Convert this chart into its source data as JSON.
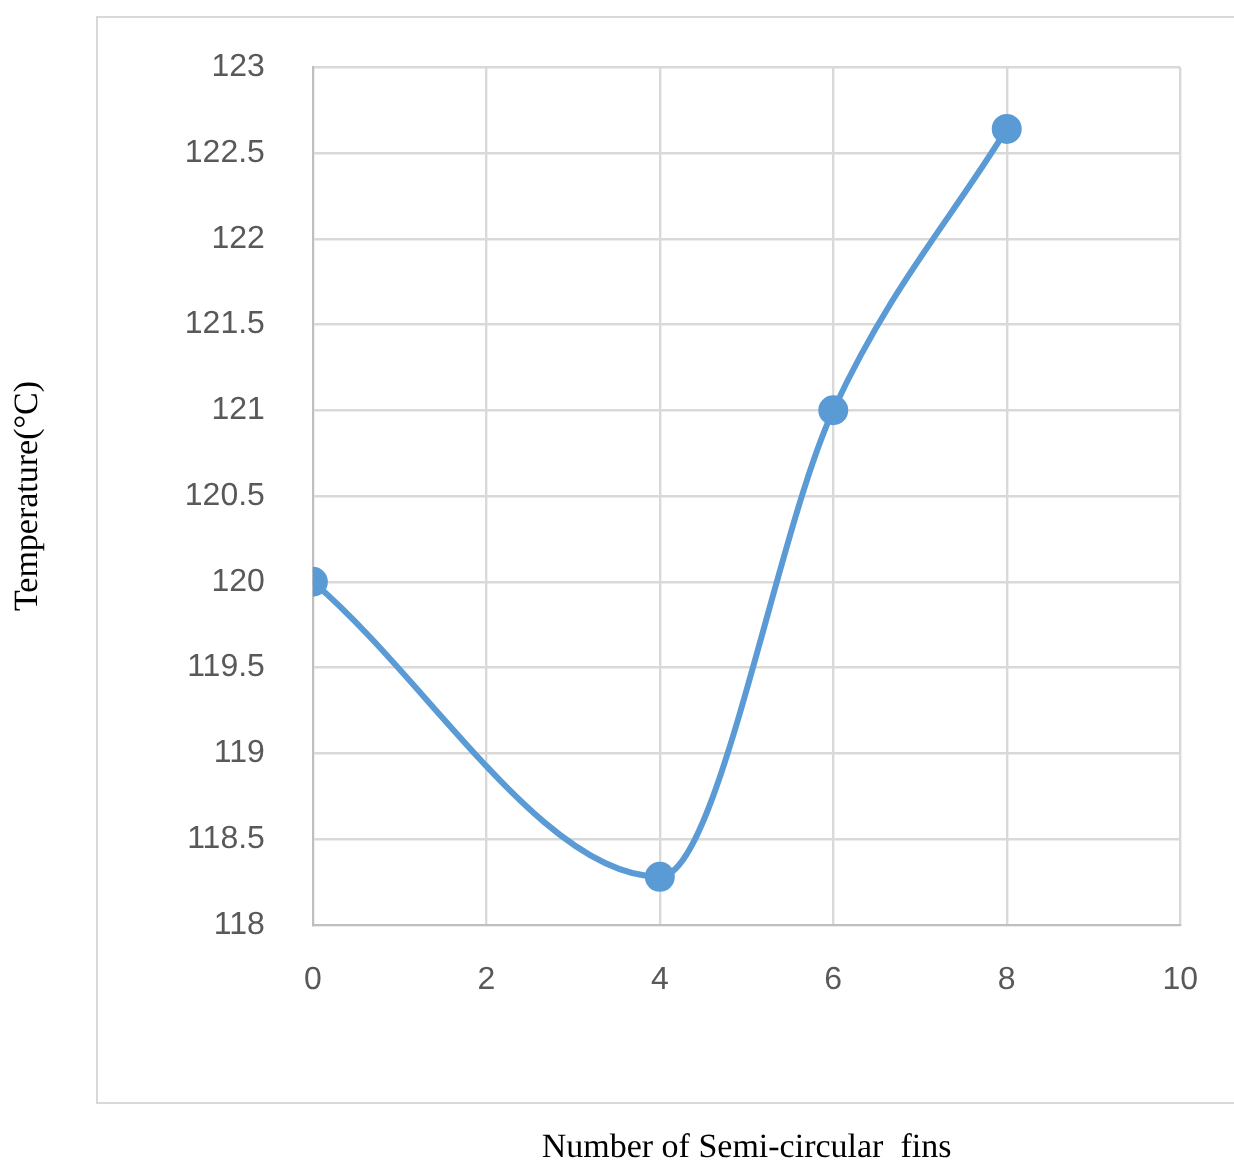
{
  "chart_data": {
    "type": "line",
    "xlabel": "Number of Semi-circular  fins",
    "ylabel": "Temperature(°C)",
    "x": [
      0,
      4,
      6,
      8
    ],
    "series": [
      {
        "color": "#5b9bd5",
        "values": [
          120,
          118.28,
          121,
          122.64
        ]
      }
    ],
    "xlim": [
      0,
      10
    ],
    "xticks": [
      0,
      2,
      4,
      6,
      8,
      10
    ],
    "ylim": [
      118,
      123
    ],
    "yticks": [
      118,
      118.5,
      119,
      119.5,
      120,
      120.5,
      121,
      121.5,
      122,
      122.5,
      123
    ],
    "grid": true,
    "marker": "circle",
    "line_style": "solid"
  }
}
